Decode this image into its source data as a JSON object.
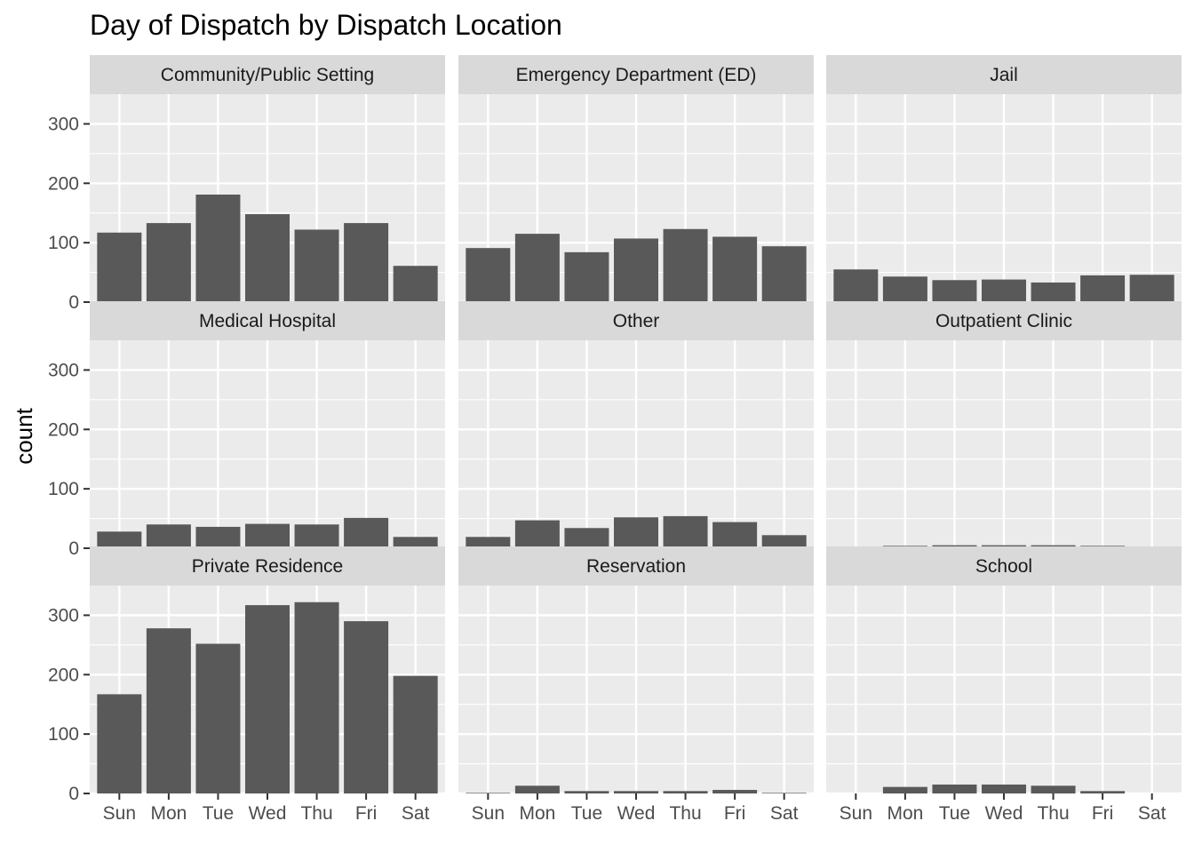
{
  "chart_data": {
    "type": "bar",
    "title": "Day of Dispatch by Dispatch Location",
    "xlabel": "",
    "ylabel": "count",
    "ylim": [
      0,
      350
    ],
    "yticks": [
      0,
      100,
      200,
      300
    ],
    "categories": [
      "Sun",
      "Mon",
      "Tue",
      "Wed",
      "Thu",
      "Fri",
      "Sat"
    ],
    "facet_columns": 3,
    "grid": true,
    "colors": {
      "bar": "#595959",
      "panel_background": "#EBEBEB",
      "strip_background": "#D9D9D9",
      "gridline": "#FFFFFF"
    },
    "facets": [
      {
        "name": "Community/Public Setting",
        "values": [
          117,
          133,
          181,
          148,
          122,
          133,
          61
        ]
      },
      {
        "name": "Emergency Department (ED)",
        "values": [
          91,
          115,
          84,
          107,
          123,
          110,
          94
        ]
      },
      {
        "name": "Jail",
        "values": [
          55,
          43,
          37,
          38,
          33,
          45,
          46
        ]
      },
      {
        "name": "Medical Hospital",
        "values": [
          28,
          40,
          36,
          41,
          40,
          51,
          19
        ]
      },
      {
        "name": "Other",
        "values": [
          19,
          47,
          34,
          52,
          54,
          44,
          22
        ]
      },
      {
        "name": "Outpatient Clinic",
        "values": [
          2,
          4,
          5,
          5,
          5,
          4,
          0
        ]
      },
      {
        "name": "Private Residence",
        "values": [
          167,
          278,
          252,
          317,
          322,
          290,
          198
        ]
      },
      {
        "name": "Reservation",
        "values": [
          1,
          13,
          4,
          4,
          4,
          6,
          1
        ]
      },
      {
        "name": "School",
        "values": [
          0,
          11,
          15,
          15,
          13,
          4,
          0
        ]
      }
    ]
  }
}
